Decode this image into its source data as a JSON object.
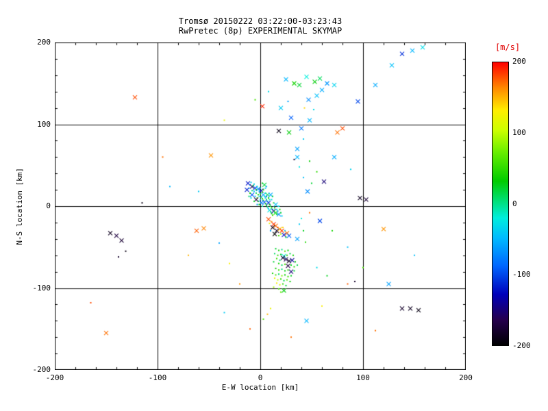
{
  "style_colors": {
    "background": "#ffffff",
    "axis": "#000000",
    "colorbar_label": "#e00000"
  },
  "chart_data": {
    "type": "scatter",
    "title": "Tromsø 20150222 03:22:00-03:23:43",
    "subtitle": "RwPretec (8p) EXPERIMENTAL SKYMAP",
    "xlabel": "E-W location [km]",
    "ylabel": "N-S location [km]",
    "xlim": [
      -200,
      200
    ],
    "ylim": [
      -200,
      200
    ],
    "xticks": [
      -200,
      -100,
      0,
      100,
      200
    ],
    "yticks": [
      -200,
      -100,
      0,
      100,
      200
    ],
    "grid": true,
    "grid_lines": [
      -100,
      0,
      100
    ],
    "value_units": "m/s",
    "colorbar": {
      "label": "[m/s]",
      "label_color": "#e00000",
      "min": -200,
      "max": 200,
      "ticks": [
        200,
        100,
        0,
        -100,
        -200
      ],
      "colormap_stops": [
        [
          0.0,
          "#000000"
        ],
        [
          0.09,
          "#25004d"
        ],
        [
          0.18,
          "#0000bb"
        ],
        [
          0.28,
          "#0066ff"
        ],
        [
          0.38,
          "#00bbff"
        ],
        [
          0.45,
          "#00eedd"
        ],
        [
          0.52,
          "#00dd66"
        ],
        [
          0.58,
          "#00cc00"
        ],
        [
          0.68,
          "#66ee00"
        ],
        [
          0.76,
          "#ccff00"
        ],
        [
          0.83,
          "#ffee00"
        ],
        [
          0.91,
          "#ff8800"
        ],
        [
          1.0,
          "#ff0000"
        ]
      ]
    },
    "marker_types": [
      "dot",
      "x"
    ],
    "points_format": [
      "x_km",
      "y_km",
      "velocity_ms",
      "marker_index"
    ],
    "points": [
      [
        -12,
        28,
        -120,
        1
      ],
      [
        -10,
        26,
        -80,
        0
      ],
      [
        -9,
        29,
        -40,
        0
      ],
      [
        -8,
        24,
        -160,
        1
      ],
      [
        -11,
        22,
        -60,
        0
      ],
      [
        -7,
        25,
        20,
        0
      ],
      [
        -6,
        27,
        -30,
        0
      ],
      [
        -5,
        22,
        -100,
        1
      ],
      [
        -8,
        19,
        0,
        0
      ],
      [
        -6,
        18,
        -50,
        0
      ],
      [
        -4,
        20,
        30,
        0
      ],
      [
        -3,
        24,
        -20,
        0
      ],
      [
        -2,
        21,
        -70,
        1
      ],
      [
        -4,
        16,
        10,
        0
      ],
      [
        -2,
        14,
        40,
        0
      ],
      [
        -1,
        18,
        -40,
        0
      ],
      [
        0,
        22,
        -10,
        0
      ],
      [
        1,
        19,
        -130,
        1
      ],
      [
        0,
        15,
        20,
        0
      ],
      [
        2,
        17,
        60,
        0
      ],
      [
        -1,
        12,
        -30,
        0
      ],
      [
        1,
        11,
        0,
        0
      ],
      [
        3,
        14,
        -60,
        1
      ],
      [
        2,
        9,
        30,
        0
      ],
      [
        4,
        12,
        -20,
        0
      ],
      [
        3,
        7,
        50,
        0
      ],
      [
        5,
        10,
        -40,
        0
      ],
      [
        4,
        5,
        -90,
        1
      ],
      [
        6,
        8,
        10,
        0
      ],
      [
        5,
        3,
        40,
        0
      ],
      [
        7,
        6,
        -30,
        0
      ],
      [
        6,
        1,
        20,
        0
      ],
      [
        8,
        4,
        -110,
        1
      ],
      [
        7,
        -1,
        0,
        0
      ],
      [
        9,
        2,
        30,
        0
      ],
      [
        8,
        -3,
        -50,
        0
      ],
      [
        10,
        0,
        15,
        0
      ],
      [
        9,
        -5,
        -25,
        1
      ],
      [
        11,
        -2,
        45,
        0
      ],
      [
        10,
        -7,
        5,
        0
      ],
      [
        12,
        -4,
        -35,
        0
      ],
      [
        11,
        -9,
        25,
        0
      ],
      [
        13,
        -6,
        -140,
        1
      ],
      [
        12,
        -11,
        55,
        0
      ],
      [
        14,
        -8,
        -15,
        0
      ],
      [
        0,
        8,
        -55,
        0
      ],
      [
        -2,
        6,
        15,
        0
      ],
      [
        1,
        4,
        -75,
        1
      ],
      [
        -1,
        2,
        35,
        0
      ],
      [
        2,
        0,
        -5,
        0
      ],
      [
        -3,
        10,
        65,
        0
      ],
      [
        -5,
        12,
        -45,
        0
      ],
      [
        -4,
        8,
        -170,
        1
      ],
      [
        -6,
        6,
        25,
        0
      ],
      [
        -3,
        2,
        -65,
        0
      ],
      [
        5,
        16,
        -25,
        0
      ],
      [
        7,
        14,
        10,
        1
      ],
      [
        6,
        12,
        -85,
        0
      ],
      [
        8,
        10,
        40,
        0
      ],
      [
        9,
        8,
        -15,
        0
      ],
      [
        10,
        14,
        -55,
        1
      ],
      [
        12,
        12,
        20,
        0
      ],
      [
        11,
        8,
        -35,
        0
      ],
      [
        13,
        4,
        60,
        0
      ],
      [
        15,
        2,
        -45,
        1
      ],
      [
        14,
        -2,
        30,
        0
      ],
      [
        16,
        -4,
        -20,
        0
      ],
      [
        15,
        -8,
        50,
        1
      ],
      [
        17,
        -6,
        -60,
        0
      ],
      [
        16,
        -10,
        10,
        0
      ],
      [
        -8,
        14,
        -95,
        1
      ],
      [
        -10,
        16,
        35,
        0
      ],
      [
        -9,
        10,
        -25,
        0
      ],
      [
        -11,
        12,
        5,
        0
      ],
      [
        -13,
        20,
        -115,
        1
      ],
      [
        3,
        20,
        45,
        0
      ],
      [
        5,
        22,
        -35,
        0
      ],
      [
        4,
        26,
        15,
        1
      ],
      [
        6,
        24,
        -55,
        0
      ],
      [
        2,
        28,
        25,
        0
      ],
      [
        18,
        0,
        -30,
        0
      ],
      [
        19,
        -4,
        40,
        0
      ],
      [
        18,
        -10,
        -70,
        1
      ],
      [
        20,
        -8,
        20,
        0
      ],
      [
        21,
        -12,
        -40,
        0
      ],
      [
        8,
        -16,
        180,
        1
      ],
      [
        11,
        -19,
        160,
        0
      ],
      [
        13,
        -22,
        190,
        1
      ],
      [
        15,
        -24,
        170,
        1
      ],
      [
        17,
        -26,
        200,
        0
      ],
      [
        19,
        -28,
        150,
        1
      ],
      [
        21,
        -30,
        185,
        1
      ],
      [
        16,
        -30,
        -180,
        1
      ],
      [
        12,
        -26,
        -190,
        1
      ],
      [
        9,
        -21,
        120,
        0
      ],
      [
        22,
        -26,
        140,
        0
      ],
      [
        24,
        -30,
        -40,
        0
      ],
      [
        20,
        -34,
        90,
        0
      ],
      [
        14,
        -34,
        -200,
        1
      ],
      [
        18,
        -36,
        60,
        0
      ],
      [
        23,
        -35,
        -120,
        1
      ],
      [
        25,
        -38,
        20,
        0
      ],
      [
        10,
        -30,
        -60,
        0
      ],
      [
        26,
        -33,
        170,
        1
      ],
      [
        28,
        -36,
        -90,
        1
      ],
      [
        15,
        -52,
        20,
        0
      ],
      [
        18,
        -54,
        40,
        0
      ],
      [
        21,
        -53,
        0,
        0
      ],
      [
        24,
        -55,
        60,
        0
      ],
      [
        27,
        -54,
        30,
        0
      ],
      [
        14,
        -58,
        10,
        0
      ],
      [
        17,
        -60,
        50,
        0
      ],
      [
        20,
        -59,
        25,
        0
      ],
      [
        23,
        -61,
        -20,
        1
      ],
      [
        26,
        -60,
        45,
        0
      ],
      [
        29,
        -58,
        15,
        0
      ],
      [
        32,
        -60,
        35,
        0
      ],
      [
        16,
        -64,
        55,
        0
      ],
      [
        19,
        -66,
        5,
        0
      ],
      [
        22,
        -63,
        -180,
        1
      ],
      [
        25,
        -65,
        -160,
        1
      ],
      [
        28,
        -67,
        -190,
        1
      ],
      [
        31,
        -66,
        -140,
        1
      ],
      [
        34,
        -68,
        30,
        0
      ],
      [
        13,
        -68,
        20,
        0
      ],
      [
        18,
        -70,
        40,
        0
      ],
      [
        21,
        -72,
        10,
        0
      ],
      [
        24,
        -71,
        60,
        0
      ],
      [
        27,
        -73,
        -170,
        1
      ],
      [
        30,
        -72,
        25,
        0
      ],
      [
        33,
        -74,
        45,
        0
      ],
      [
        36,
        -72,
        15,
        0
      ],
      [
        15,
        -76,
        35,
        0
      ],
      [
        18,
        -78,
        55,
        0
      ],
      [
        21,
        -77,
        5,
        0
      ],
      [
        24,
        -79,
        30,
        0
      ],
      [
        27,
        -78,
        50,
        0
      ],
      [
        30,
        -80,
        -150,
        1
      ],
      [
        33,
        -79,
        20,
        0
      ],
      [
        12,
        -82,
        40,
        0
      ],
      [
        15,
        -84,
        60,
        0
      ],
      [
        18,
        -83,
        10,
        0
      ],
      [
        21,
        -85,
        80,
        0
      ],
      [
        24,
        -84,
        35,
        0
      ],
      [
        27,
        -86,
        55,
        0
      ],
      [
        30,
        -85,
        25,
        0
      ],
      [
        14,
        -88,
        120,
        0
      ],
      [
        17,
        -90,
        100,
        0
      ],
      [
        20,
        -89,
        45,
        0
      ],
      [
        23,
        -91,
        15,
        0
      ],
      [
        26,
        -90,
        65,
        0
      ],
      [
        29,
        -92,
        35,
        0
      ],
      [
        16,
        -94,
        130,
        0
      ],
      [
        19,
        -96,
        110,
        0
      ],
      [
        22,
        -95,
        50,
        0
      ],
      [
        25,
        -97,
        20,
        0
      ],
      [
        13,
        -99,
        90,
        0
      ],
      [
        18,
        -101,
        60,
        0
      ],
      [
        23,
        -103,
        30,
        1
      ],
      [
        20,
        -105,
        70,
        0
      ],
      [
        36,
        70,
        -60,
        1
      ],
      [
        42,
        82,
        -40,
        0
      ],
      [
        40,
        95,
        -80,
        1
      ],
      [
        48,
        105,
        -50,
        1
      ],
      [
        52,
        118,
        -30,
        0
      ],
      [
        47,
        130,
        -70,
        1
      ],
      [
        55,
        135,
        -45,
        1
      ],
      [
        60,
        142,
        -55,
        1
      ],
      [
        53,
        152,
        30,
        1
      ],
      [
        58,
        156,
        10,
        1
      ],
      [
        65,
        150,
        -65,
        1
      ],
      [
        72,
        148,
        -35,
        1
      ],
      [
        95,
        128,
        -100,
        1
      ],
      [
        112,
        148,
        -55,
        1
      ],
      [
        128,
        172,
        -45,
        1
      ],
      [
        138,
        186,
        -110,
        1
      ],
      [
        148,
        190,
        -50,
        1
      ],
      [
        158,
        194,
        -30,
        1
      ],
      [
        20,
        120,
        -40,
        1
      ],
      [
        27,
        128,
        -60,
        0
      ],
      [
        33,
        150,
        40,
        1
      ],
      [
        38,
        148,
        20,
        1
      ],
      [
        25,
        155,
        -50,
        1
      ],
      [
        45,
        158,
        -20,
        1
      ],
      [
        2,
        122,
        190,
        1
      ],
      [
        8,
        140,
        -30,
        0
      ],
      [
        -5,
        130,
        60,
        0
      ],
      [
        30,
        108,
        -90,
        1
      ],
      [
        43,
        120,
        140,
        0
      ],
      [
        18,
        92,
        -190,
        1
      ],
      [
        28,
        90,
        30,
        1
      ],
      [
        36,
        60,
        -50,
        1
      ],
      [
        33,
        57,
        -180,
        0
      ],
      [
        -122,
        133,
        180,
        1
      ],
      [
        -95,
        60,
        170,
        0
      ],
      [
        -48,
        62,
        160,
        1
      ],
      [
        -35,
        105,
        120,
        0
      ],
      [
        -60,
        18,
        -40,
        0
      ],
      [
        -88,
        24,
        -50,
        0
      ],
      [
        -115,
        4,
        -190,
        0
      ],
      [
        -140,
        -36,
        -170,
        1
      ],
      [
        -146,
        -33,
        -185,
        1
      ],
      [
        -135,
        -42,
        -175,
        1
      ],
      [
        -131,
        -55,
        -190,
        0
      ],
      [
        -138,
        -62,
        -180,
        0
      ],
      [
        -150,
        -155,
        170,
        1
      ],
      [
        -165,
        -118,
        180,
        0
      ],
      [
        -62,
        -30,
        175,
        1
      ],
      [
        -55,
        -27,
        165,
        1
      ],
      [
        -70,
        -60,
        150,
        0
      ],
      [
        -40,
        -45,
        -60,
        0
      ],
      [
        -30,
        -70,
        130,
        0
      ],
      [
        -20,
        -95,
        160,
        0
      ],
      [
        -10,
        -150,
        175,
        0
      ],
      [
        -35,
        -130,
        -40,
        0
      ],
      [
        48,
        -8,
        170,
        0
      ],
      [
        58,
        -18,
        -100,
        1
      ],
      [
        70,
        -30,
        40,
        0
      ],
      [
        85,
        -50,
        -45,
        0
      ],
      [
        97,
        10,
        -185,
        1
      ],
      [
        103,
        8,
        -175,
        1
      ],
      [
        75,
        90,
        170,
        1
      ],
      [
        80,
        95,
        180,
        1
      ],
      [
        72,
        60,
        -55,
        1
      ],
      [
        88,
        45,
        -35,
        0
      ],
      [
        120,
        -28,
        160,
        1
      ],
      [
        150,
        -60,
        -45,
        0
      ],
      [
        138,
        -125,
        -180,
        1
      ],
      [
        146,
        -125,
        -185,
        1
      ],
      [
        154,
        -127,
        -190,
        1
      ],
      [
        112,
        -152,
        170,
        0
      ],
      [
        85,
        -95,
        175,
        0
      ],
      [
        92,
        -92,
        -180,
        0
      ],
      [
        60,
        -122,
        130,
        0
      ],
      [
        45,
        -140,
        -50,
        1
      ],
      [
        30,
        -160,
        170,
        0
      ],
      [
        10,
        -125,
        120,
        0
      ],
      [
        7,
        -132,
        150,
        0
      ],
      [
        3,
        -138,
        60,
        0
      ],
      [
        55,
        -75,
        -30,
        0
      ],
      [
        65,
        -85,
        25,
        0
      ],
      [
        100,
        -75,
        60,
        0
      ],
      [
        125,
        -95,
        -60,
        1
      ],
      [
        42,
        35,
        -45,
        0
      ],
      [
        50,
        28,
        20,
        0
      ],
      [
        46,
        18,
        -70,
        1
      ],
      [
        55,
        42,
        50,
        0
      ],
      [
        38,
        48,
        -25,
        0
      ],
      [
        62,
        30,
        -150,
        1
      ],
      [
        48,
        55,
        35,
        0
      ],
      [
        38,
        -22,
        -40,
        0
      ],
      [
        42,
        -30,
        25,
        0
      ],
      [
        36,
        -40,
        -60,
        1
      ],
      [
        44,
        -44,
        45,
        0
      ],
      [
        40,
        -15,
        -20,
        0
      ]
    ]
  }
}
